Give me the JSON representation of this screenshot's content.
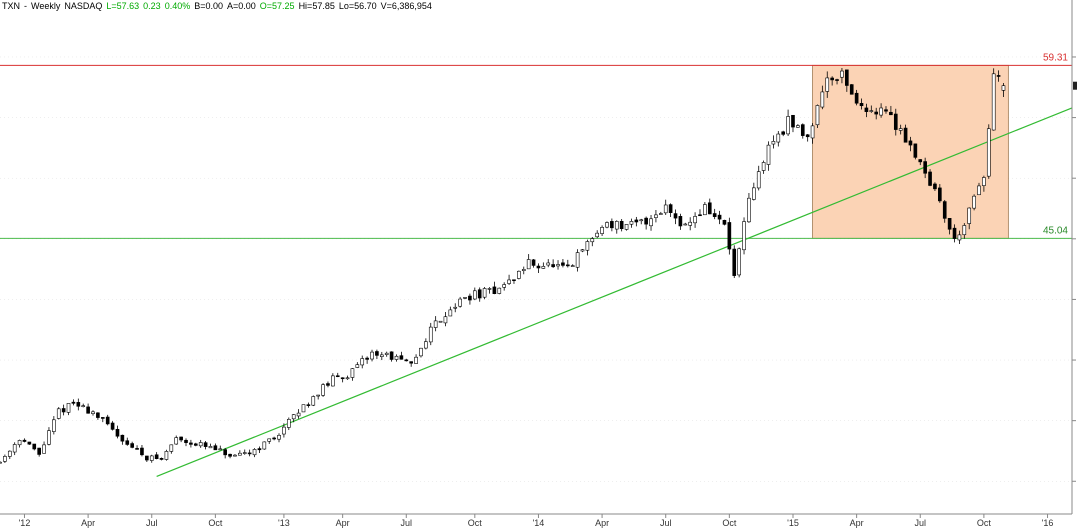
{
  "header": {
    "symbol": "TXN",
    "sep": "-",
    "period": "Weekly",
    "exchange": "NASDAQ",
    "last": "L=57.63",
    "change": "0.23",
    "pct": "0.40%",
    "bid": "B=0.00",
    "ask": "A=0.00",
    "open": "O=57.25",
    "high": "Hi=57.85",
    "low": "Lo=56.70",
    "volume": "V=6,386,954"
  },
  "colors": {
    "up_text": "#00aa00",
    "resistance": "#d93030",
    "support": "#4cbb4c",
    "trendline": "#33bb33",
    "zone_fill": "#fbd3b5",
    "zone_border": "#a07850",
    "candle_border": "#000000",
    "candle_down": "#000000",
    "candle_up": "#ffffff",
    "grid": "#dddddd"
  },
  "chart_data": {
    "type": "candlestick",
    "instrument": "TXN - Weekly NASDAQ",
    "x_ticks": [
      "'12",
      "Apr",
      "Jul",
      "Oct",
      "'13",
      "Apr",
      "Jul",
      "Oct",
      "'14",
      "Apr",
      "Jul",
      "Oct",
      "'15",
      "Apr",
      "Jul",
      "Oct",
      "'16"
    ],
    "x_range": [
      "2011-11-28",
      "2016-02-08"
    ],
    "y_range": [
      22.3,
      64.7
    ],
    "grid": true,
    "levels": [
      {
        "label": "59.31",
        "value": 59.31,
        "color": "#d93030"
      },
      {
        "label": "45.04",
        "value": 45.04,
        "color": "#4cbb4c"
      }
    ],
    "zone": {
      "x_start": "2015-02-02",
      "x_end": "2015-11-09",
      "y_low": 45.04,
      "y_high": 59.31
    },
    "trendline": {
      "start": {
        "x": "2012-07-09",
        "y": 25.4
      },
      "end": {
        "x": "2016-02-08",
        "y": 55.8
      }
    },
    "price_path": [
      [
        "2011-11-28",
        26.6
      ],
      [
        "2011-12-26",
        28.6
      ],
      [
        "2012-01-23",
        27.2
      ],
      [
        "2012-02-20",
        30.8
      ],
      [
        "2012-03-12",
        31.4
      ],
      [
        "2012-04-09",
        30.7
      ],
      [
        "2012-05-07",
        29.2
      ],
      [
        "2012-06-04",
        27.8
      ],
      [
        "2012-06-25",
        27.0
      ],
      [
        "2012-07-16",
        26.8
      ],
      [
        "2012-08-06",
        28.6
      ],
      [
        "2012-09-03",
        28.1
      ],
      [
        "2012-10-01",
        27.6
      ],
      [
        "2012-10-29",
        26.9
      ],
      [
        "2012-11-26",
        27.6
      ],
      [
        "2012-12-24",
        28.6
      ],
      [
        "2013-01-21",
        30.3
      ],
      [
        "2013-02-18",
        32.0
      ],
      [
        "2013-03-18",
        33.4
      ],
      [
        "2013-04-15",
        34.0
      ],
      [
        "2013-05-13",
        35.6
      ],
      [
        "2013-06-10",
        35.3
      ],
      [
        "2013-07-08",
        34.5
      ],
      [
        "2013-08-05",
        37.6
      ],
      [
        "2013-09-02",
        39.3
      ],
      [
        "2013-09-30",
        40.3
      ],
      [
        "2013-10-28",
        40.6
      ],
      [
        "2013-11-25",
        41.4
      ],
      [
        "2013-12-23",
        43.0
      ],
      [
        "2014-01-20",
        42.8
      ],
      [
        "2014-02-17",
        42.4
      ],
      [
        "2014-03-17",
        44.6
      ],
      [
        "2014-04-14",
        46.4
      ],
      [
        "2014-05-12",
        45.9
      ],
      [
        "2014-06-09",
        46.5
      ],
      [
        "2014-07-07",
        47.7
      ],
      [
        "2014-08-04",
        46.1
      ],
      [
        "2014-09-01",
        47.6
      ],
      [
        "2014-09-29",
        46.1
      ],
      [
        "2014-10-13",
        42.0
      ],
      [
        "2014-11-03",
        48.0
      ],
      [
        "2014-12-01",
        52.6
      ],
      [
        "2014-12-29",
        54.6
      ],
      [
        "2015-01-26",
        53.5
      ],
      [
        "2015-02-23",
        58.4
      ],
      [
        "2015-03-16",
        58.6
      ],
      [
        "2015-04-13",
        55.6
      ],
      [
        "2015-05-11",
        55.8
      ],
      [
        "2015-06-08",
        54.0
      ],
      [
        "2015-07-06",
        51.4
      ],
      [
        "2015-08-03",
        48.0
      ],
      [
        "2015-08-24",
        44.8
      ],
      [
        "2015-09-14",
        47.2
      ],
      [
        "2015-10-05",
        50.1
      ],
      [
        "2015-10-19",
        58.4
      ],
      [
        "2015-11-02",
        57.6
      ]
    ],
    "last_bar": {
      "open": 57.25,
      "high": 57.85,
      "low": 56.7,
      "close": 57.63,
      "volume": 6386954
    }
  }
}
